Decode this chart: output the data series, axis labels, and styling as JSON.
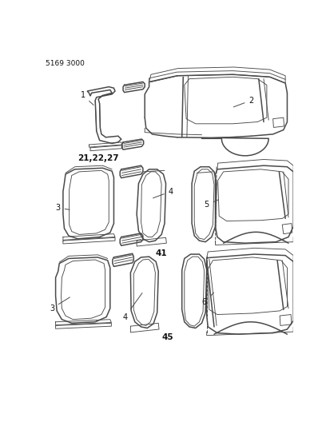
{
  "part_number": "5169 3000",
  "background_color": "#ffffff",
  "line_color": "#4a4a4a",
  "label_color": "#111111",
  "fig_width": 4.08,
  "fig_height": 5.33,
  "dpi": 100
}
